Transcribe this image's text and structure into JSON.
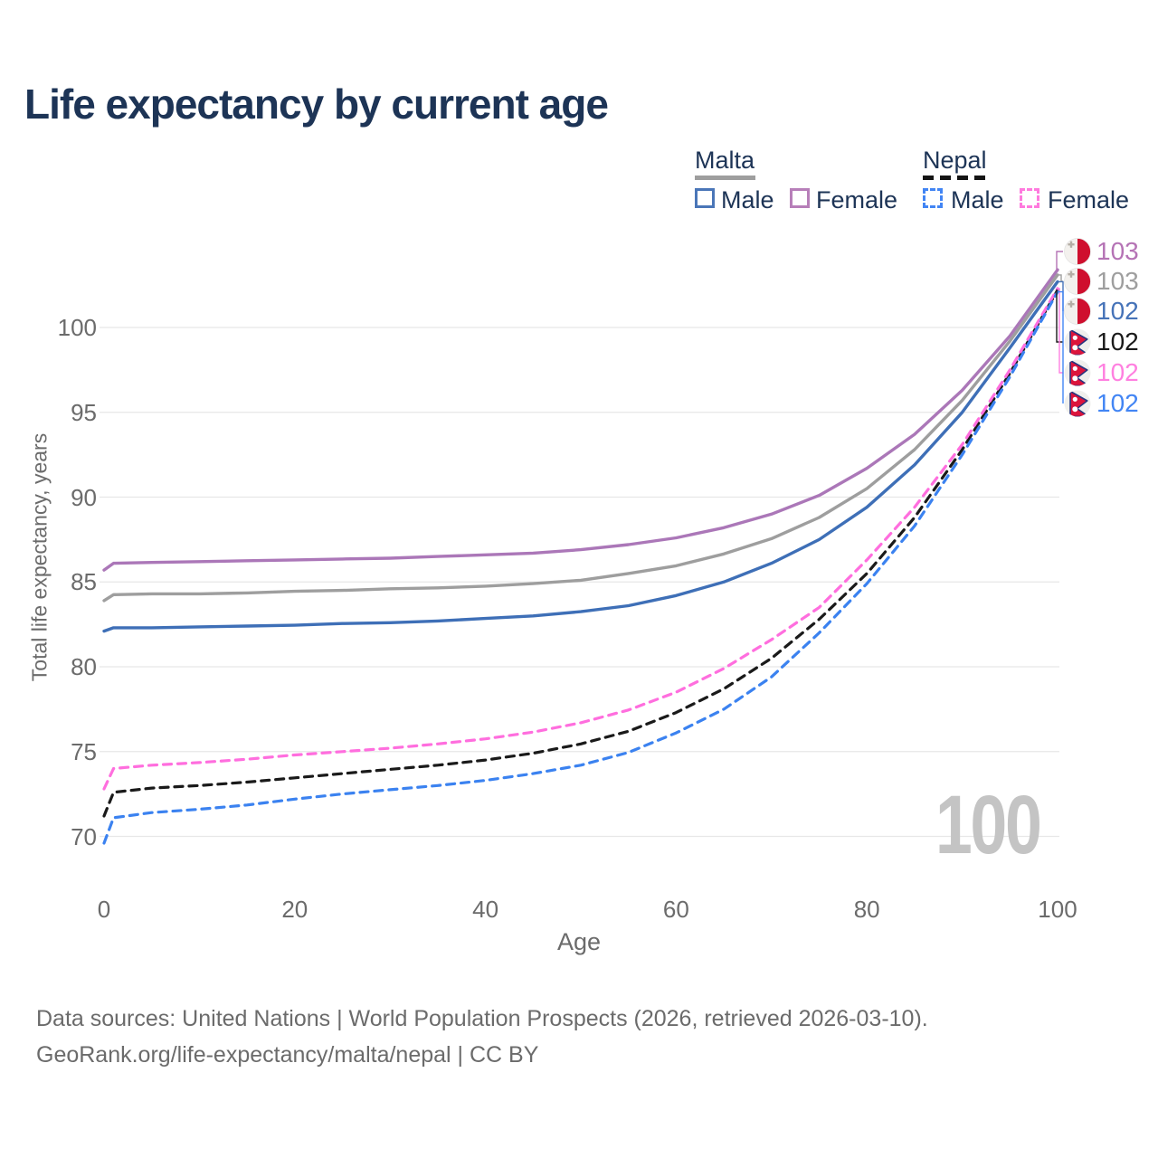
{
  "title": "Life expectancy by current age",
  "watermark": "100",
  "legend": {
    "groups": [
      {
        "label": "Malta",
        "line_color": "#9e9e9e",
        "dashed": false,
        "items": [
          {
            "label": "Male",
            "color": "#4a76b8"
          },
          {
            "label": "Female",
            "color": "#b77fb9"
          }
        ]
      },
      {
        "label": "Nepal",
        "line_color": "#141414",
        "dashed": true,
        "items": [
          {
            "label": "Male",
            "color": "#4285f4"
          },
          {
            "label": "Female",
            "color": "#ff7ade"
          }
        ]
      }
    ]
  },
  "chart_data": {
    "type": "line",
    "title": "Life expectancy by current age",
    "xlabel": "Age",
    "ylabel": "Total life expectancy, years",
    "x_ticks": [
      "0",
      "20",
      "40",
      "60",
      "80",
      "100"
    ],
    "x_tick_values": [
      0,
      20,
      40,
      60,
      80,
      100
    ],
    "y_ticks": [
      "70",
      "75",
      "80",
      "85",
      "90",
      "95",
      "100"
    ],
    "y_tick_values": [
      70,
      75,
      80,
      85,
      90,
      95,
      100
    ],
    "xlim": [
      0,
      100
    ],
    "grid": "horizontal-only",
    "legend_position": "top-right",
    "ages": [
      0,
      1,
      5,
      10,
      15,
      20,
      25,
      30,
      35,
      40,
      45,
      50,
      55,
      60,
      65,
      70,
      75,
      80,
      85,
      90,
      95,
      100
    ],
    "series": [
      {
        "name": "Malta Female",
        "country": "Malta",
        "sex": "Female",
        "color": "#ab77b8",
        "dashed": false,
        "flag": "malta",
        "end_label": "103",
        "end_label_color": "#b573b5",
        "values": [
          85.7,
          86.1,
          86.15,
          86.2,
          86.25,
          86.3,
          86.35,
          86.4,
          86.5,
          86.6,
          86.7,
          86.9,
          87.2,
          87.6,
          88.2,
          89.0,
          90.1,
          91.7,
          93.7,
          96.3,
          99.5,
          103.4
        ]
      },
      {
        "name": "Malta",
        "country": "Malta",
        "sex": "Both",
        "color": "#9e9e9e",
        "dashed": false,
        "flag": "malta",
        "end_label": "103",
        "end_label_color": "#9e9e9e",
        "values": [
          83.9,
          84.25,
          84.3,
          84.3,
          84.35,
          84.45,
          84.5,
          84.6,
          84.65,
          84.75,
          84.9,
          85.1,
          85.5,
          85.95,
          86.65,
          87.55,
          88.8,
          90.5,
          92.8,
          95.7,
          99.2,
          103.1
        ]
      },
      {
        "name": "Malta Male",
        "country": "Malta",
        "sex": "Male",
        "color": "#3e6fb7",
        "dashed": false,
        "flag": "malta",
        "end_label": "102",
        "end_label_color": "#4673b8",
        "values": [
          82.1,
          82.3,
          82.3,
          82.35,
          82.4,
          82.45,
          82.55,
          82.6,
          82.7,
          82.85,
          83.0,
          83.25,
          83.6,
          84.2,
          85.0,
          86.1,
          87.5,
          89.4,
          91.9,
          95.0,
          98.8,
          102.7
        ]
      },
      {
        "name": "Nepal",
        "country": "Nepal",
        "sex": "Both",
        "color": "#1a1a1a",
        "dashed": true,
        "flag": "nepal",
        "end_label": "102",
        "end_label_color": "#1a1a1a",
        "values": [
          71.2,
          72.6,
          72.85,
          73.0,
          73.2,
          73.45,
          73.7,
          73.95,
          74.2,
          74.5,
          74.9,
          75.45,
          76.2,
          77.3,
          78.7,
          80.5,
          82.8,
          85.5,
          88.8,
          92.8,
          97.3,
          102.2
        ]
      },
      {
        "name": "Nepal Female",
        "country": "Nepal",
        "sex": "Female",
        "color": "#ff6ede",
        "dashed": true,
        "flag": "nepal",
        "end_label": "102",
        "end_label_color": "#ff80e0",
        "values": [
          72.8,
          74.0,
          74.2,
          74.35,
          74.55,
          74.8,
          75.0,
          75.2,
          75.45,
          75.75,
          76.15,
          76.7,
          77.45,
          78.5,
          79.9,
          81.6,
          83.5,
          86.3,
          89.4,
          93.1,
          97.5,
          102.3
        ]
      },
      {
        "name": "Nepal Male",
        "country": "Nepal",
        "sex": "Male",
        "color": "#3b82f0",
        "dashed": true,
        "flag": "nepal",
        "end_label": "102",
        "end_label_color": "#4285f4",
        "values": [
          69.6,
          71.1,
          71.4,
          71.6,
          71.85,
          72.2,
          72.5,
          72.75,
          73.0,
          73.3,
          73.7,
          74.2,
          74.95,
          76.1,
          77.5,
          79.4,
          82.0,
          84.9,
          88.3,
          92.5,
          97.1,
          102.1
        ]
      }
    ]
  },
  "footer": {
    "line1": "Data sources: United Nations | World Population Prospects (2026, retrieved 2026-03-10).",
    "line2": "GeoRank.org/life-expectancy/malta/nepal | CC BY"
  }
}
